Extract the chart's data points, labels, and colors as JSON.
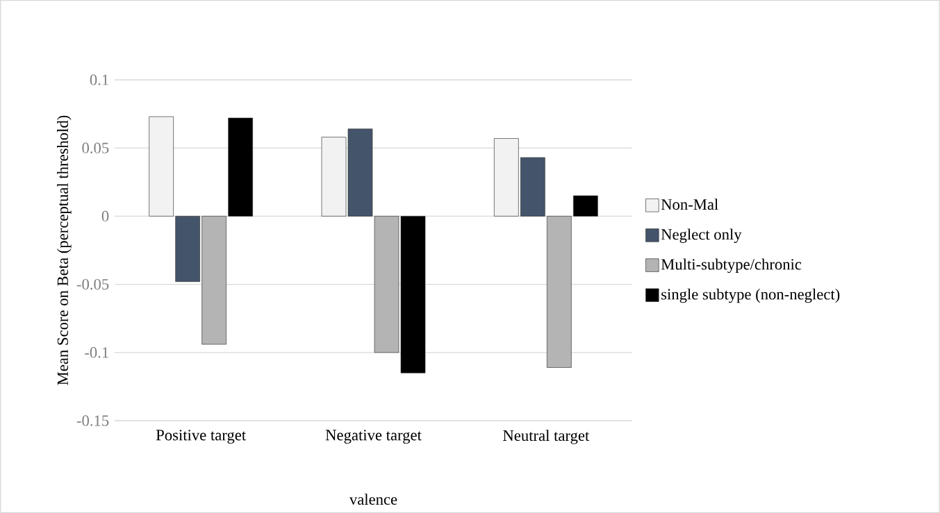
{
  "chart_data": {
    "type": "bar",
    "xlabel": "valence",
    "ylabel": "Mean Score on Beta (perceptual threshold)",
    "categories": [
      "Positive target",
      "Negative target",
      "Neutral target"
    ],
    "series": [
      {
        "name": "Non-Mal",
        "color": "#f2f2f2",
        "values": [
          0.073,
          0.058,
          0.057
        ]
      },
      {
        "name": "Neglect only",
        "color": "#44546a",
        "values": [
          -0.048,
          0.064,
          0.043
        ]
      },
      {
        "name": "Multi-subtype/chronic",
        "color": "#b4b4b4",
        "values": [
          -0.094,
          -0.1,
          -0.111
        ]
      },
      {
        "name": "single subtype (non-neglect)",
        "color": "#000000",
        "values": [
          0.072,
          -0.115,
          0.015
        ]
      }
    ],
    "ylim": [
      -0.15,
      0.1
    ],
    "yticks": [
      0.1,
      0.05,
      0,
      -0.05,
      -0.1,
      -0.15
    ],
    "grid": "y",
    "legend": "right"
  }
}
